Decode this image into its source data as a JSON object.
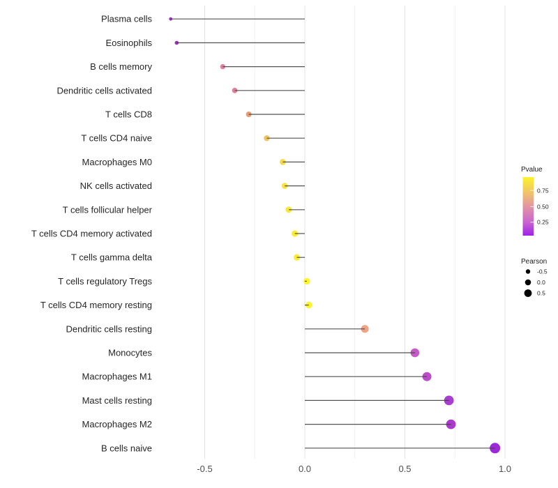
{
  "chart_data": {
    "type": "lollipop",
    "title": "",
    "xlabel": "",
    "ylabel": "",
    "x_axis": {
      "major_ticks": [
        -0.5,
        0.0,
        0.5,
        1.0
      ],
      "major_tick_labels": [
        "-0.5",
        "0.0",
        "0.5",
        "1.0"
      ],
      "minor_ticks": [
        -0.25,
        0.25,
        0.75
      ],
      "xlim": [
        -0.75,
        1.05
      ]
    },
    "baseline_value": 0.0,
    "rows": [
      {
        "label": "Plasma cells",
        "pearson": -0.67,
        "color": "#9b33c4",
        "radius": 2.4
      },
      {
        "label": "Eosinophils",
        "pearson": -0.64,
        "color": "#9c30c2",
        "radius": 2.8
      },
      {
        "label": "B cells memory",
        "pearson": -0.41,
        "color": "#de82a4",
        "radius": 3.7
      },
      {
        "label": "Dendritic cells activated",
        "pearson": -0.35,
        "color": "#e08098",
        "radius": 3.9
      },
      {
        "label": "T cells CD8",
        "pearson": -0.28,
        "color": "#eb9a72",
        "radius": 4.0
      },
      {
        "label": "T cells CD4 naive",
        "pearson": -0.19,
        "color": "#f2c45e",
        "radius": 4.2
      },
      {
        "label": "Macrophages M0",
        "pearson": -0.11,
        "color": "#f5db4b",
        "radius": 4.4
      },
      {
        "label": "NK cells activated",
        "pearson": -0.1,
        "color": "#f6e242",
        "radius": 4.4
      },
      {
        "label": "T cells follicular helper",
        "pearson": -0.08,
        "color": "#f8e83b",
        "radius": 4.5
      },
      {
        "label": "T cells CD4 memory activated",
        "pearson": -0.05,
        "color": "#faec34",
        "radius": 4.6
      },
      {
        "label": "T cells gamma delta",
        "pearson": -0.04,
        "color": "#faec34",
        "radius": 4.6
      },
      {
        "label": "T cells regulatory  Tregs",
        "pearson": 0.01,
        "color": "#fdf42c",
        "radius": 4.7
      },
      {
        "label": "T cells CD4 memory resting",
        "pearson": 0.02,
        "color": "#fdf52b",
        "radius": 4.8
      },
      {
        "label": "Dendritic cells resting",
        "pearson": 0.3,
        "color": "#efa285",
        "radius": 5.6
      },
      {
        "label": "Monocytes",
        "pearson": 0.55,
        "color": "#c55bc7",
        "radius": 6.3
      },
      {
        "label": "Macrophages M1",
        "pearson": 0.61,
        "color": "#bc4ccb",
        "radius": 6.5
      },
      {
        "label": "Mast cells resting",
        "pearson": 0.72,
        "color": "#a93dd1",
        "radius": 6.9
      },
      {
        "label": "Macrophages M2",
        "pearson": 0.73,
        "color": "#a93acb",
        "radius": 6.9
      },
      {
        "label": "B cells naive",
        "pearson": 0.95,
        "color": "#9d28db",
        "radius": 7.5
      }
    ],
    "legend_pvalue": {
      "title": "Pvalue",
      "gradient_stops": [
        {
          "offset": 0,
          "color": "#faf32b"
        },
        {
          "offset": 23,
          "color": "#f3ca60"
        },
        {
          "offset": 50.5,
          "color": "#e294a4"
        },
        {
          "offset": 77,
          "color": "#c964cf"
        },
        {
          "offset": 100,
          "color": "#9e22e8"
        }
      ],
      "ticks": [
        {
          "label": "0.75",
          "offset": 23
        },
        {
          "label": "0.50",
          "offset": 50.5
        },
        {
          "label": "0.25",
          "offset": 77
        }
      ]
    },
    "legend_pearson": {
      "title": "Pearson",
      "items": [
        {
          "label": "-0.5",
          "radius": 3.2
        },
        {
          "label": "0.0",
          "radius": 4.3
        },
        {
          "label": "0.5",
          "radius": 5.4
        }
      ]
    },
    "style_colors": {
      "stem": "#3f3f3f",
      "grid_major": "#e3e3e3",
      "grid_minor": "#ededed",
      "axis_text": "#4d4d4d",
      "y_label_text": "#262626",
      "legend_text": "#1a1a1a",
      "legend_dot": "#000000"
    },
    "layout_hints": {
      "grid": "vertical only",
      "legend_position": "right",
      "background": "#ffffff"
    }
  }
}
